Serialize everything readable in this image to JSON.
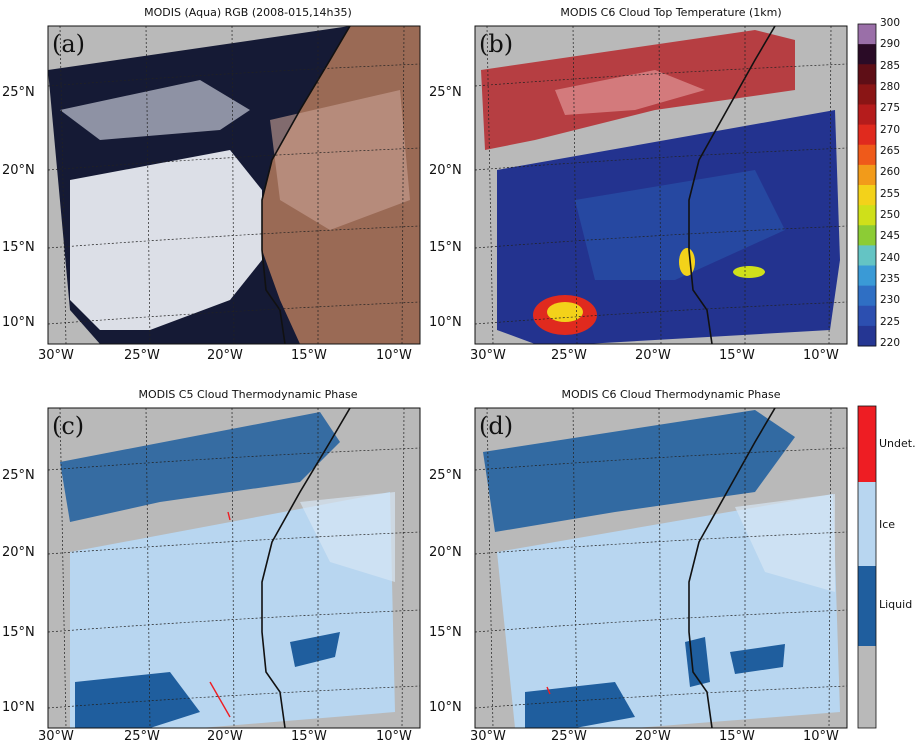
{
  "panels": [
    {
      "id": "a",
      "label": "(a)",
      "title": "MODIS (Aqua) RGB (2008-015,14h35)"
    },
    {
      "id": "b",
      "label": "(b)",
      "title": "MODIS C6 Cloud Top Temperature (1km)"
    },
    {
      "id": "c",
      "label": "(c)",
      "title": "MODIS C5 Cloud Thermodynamic Phase"
    },
    {
      "id": "d",
      "label": "(d)",
      "title": "MODIS C6 Cloud Thermodynamic Phase"
    }
  ],
  "axes": {
    "lat_labels": [
      "25°N",
      "20°N",
      "15°N",
      "10°N"
    ],
    "lon_labels": [
      "30°W",
      "25°W",
      "20°W",
      "15°W",
      "10°W"
    ]
  },
  "temp_colorbar": {
    "ticks": [
      "300",
      "290",
      "285",
      "280",
      "275",
      "270",
      "265",
      "260",
      "255",
      "250",
      "245",
      "240",
      "235",
      "230",
      "225",
      "220"
    ],
    "colors": [
      "#9a6fa8",
      "#2a0b26",
      "#5e0e16",
      "#8a1515",
      "#b51c1c",
      "#e02a1e",
      "#ef5a1a",
      "#f29b1a",
      "#f3d21a",
      "#cfe01a",
      "#8ccc35",
      "#64c4c4",
      "#3a9ad6",
      "#2f6fc4",
      "#2c4fb0",
      "#253693"
    ]
  },
  "phase_colorbar": {
    "labels": [
      "Undet.",
      "Ice",
      "Liquid"
    ],
    "colors": {
      "undet": "#ee1d23",
      "ice": "#b8d6f0",
      "liquid": "#1f5e9e",
      "clear": "#b9b9b9"
    }
  },
  "colors": {
    "background": "#b9b9b9",
    "ocean_dark": "#151a35",
    "desert": "#9a6a55",
    "cloud_white": "#eef0f6",
    "ctt_blue": "#23338f",
    "ctt_red": "#b5161b"
  }
}
